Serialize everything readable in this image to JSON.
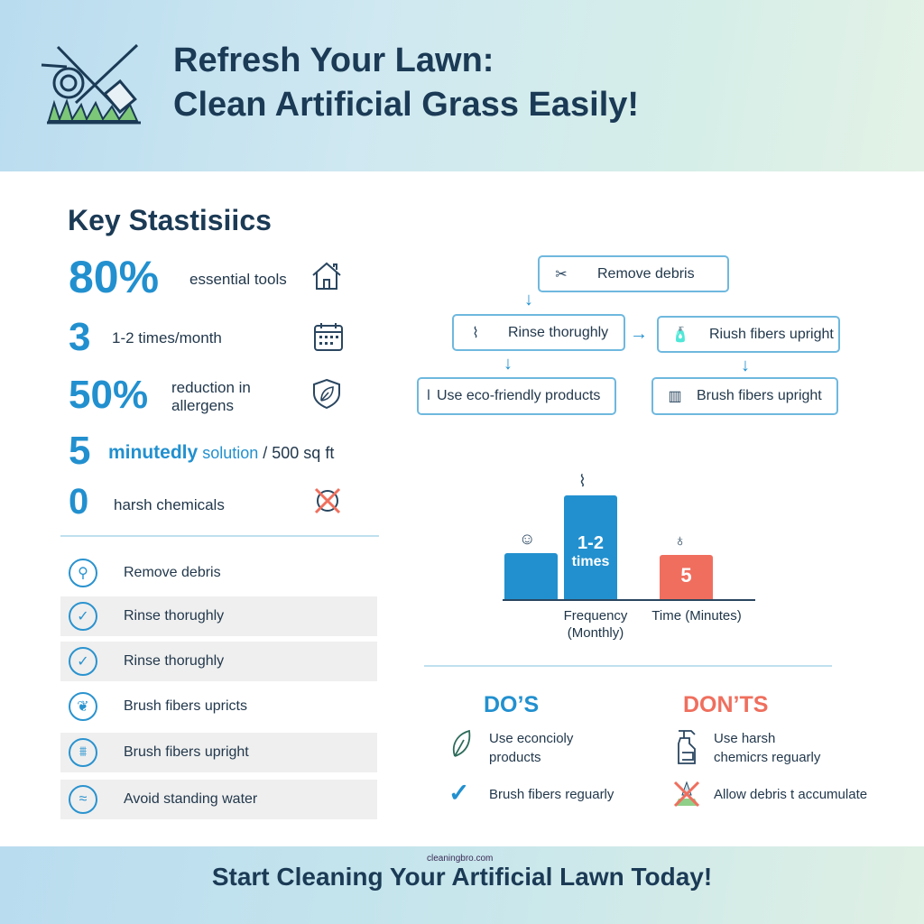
{
  "header": {
    "title_line1": "Refresh Your Lawn:",
    "title_line2": "Clean Artificial Grass Easily!",
    "logo_icon": "hose-brush-grass-icon"
  },
  "stats": {
    "heading": "Key Stastisiics",
    "items": [
      {
        "value": "80%",
        "label": "essential tools",
        "icon": "house-icon"
      },
      {
        "value": "3",
        "label": "1-2 times/month",
        "icon": "calendar-icon"
      },
      {
        "value": "50%",
        "label_line1": "reduction in",
        "label_line2": "allergens",
        "icon": "shield-leaf-icon"
      },
      {
        "value": "5",
        "label_highlight": "minutedly",
        "label_mid": "solution",
        "label": "/ 500 sq ft"
      },
      {
        "value": "0",
        "label": "harsh chemicals",
        "icon": "no-chemicals-icon"
      }
    ]
  },
  "checklist": [
    {
      "label": "Remove debris",
      "icon": "broom-icon",
      "shaded": false
    },
    {
      "label": "Rinse thorughly",
      "icon": "check-icon",
      "shaded": true
    },
    {
      "label": "Rinse thorughly",
      "icon": "check-icon",
      "shaded": true
    },
    {
      "label": "Brush fibers upricts",
      "icon": "leaf-icon",
      "shaded": false
    },
    {
      "label": "Brush fibers upright",
      "icon": "brush-icon",
      "shaded": true
    },
    {
      "label": "Avoid standing water",
      "icon": "water-icon",
      "shaded": true
    }
  ],
  "flow": {
    "steps": [
      {
        "label": "Remove debris",
        "icon": "tools-icon"
      },
      {
        "label": "Rinse thorughly",
        "icon": "hose-icon"
      },
      {
        "label": "Riush fibers upright",
        "icon": "spray-bottle-icon"
      },
      {
        "label": "Use eco-friendly products",
        "icon": "brush-handle-icon"
      },
      {
        "label": "Brush fibers upright",
        "icon": "scrub-brush-icon"
      }
    ]
  },
  "bars": {
    "items": [
      {
        "label": "",
        "level": 0.45,
        "color": "#2290cf",
        "icon": "face-icon"
      },
      {
        "label_line1": "1-2",
        "label_line2": "times",
        "level": 1.0,
        "color": "#2290cf",
        "icon": "hose-icon"
      },
      {
        "label_line1": "5",
        "level": 0.43,
        "color": "#f06e5e",
        "icon": "spray-bottle-icon"
      }
    ],
    "axis_labels": [
      {
        "line1": "Frequency",
        "line2": "(Monthly)"
      },
      {
        "line1": "Time (Minutes)"
      }
    ]
  },
  "dos": {
    "heading": "DO’S",
    "color": "#2290cf",
    "items": [
      {
        "line1": "Use econcioly",
        "line2": "products",
        "icon": "leaf-icon"
      },
      {
        "line1": "Brush fibers reguarly",
        "icon": "check-icon"
      }
    ]
  },
  "donts": {
    "heading": "DON’TS",
    "color": "#ef6f5e",
    "items": [
      {
        "line1": "Use harsh",
        "line2": "chemicrs reguarly",
        "icon": "spray-bottle-icon"
      },
      {
        "line1": "Allow debris t accumulate",
        "icon": "no-debris-icon"
      }
    ]
  },
  "footer": {
    "site": "cleaningbro.com",
    "cta": "Start Cleaning Your Artificial Lawn Today!"
  }
}
